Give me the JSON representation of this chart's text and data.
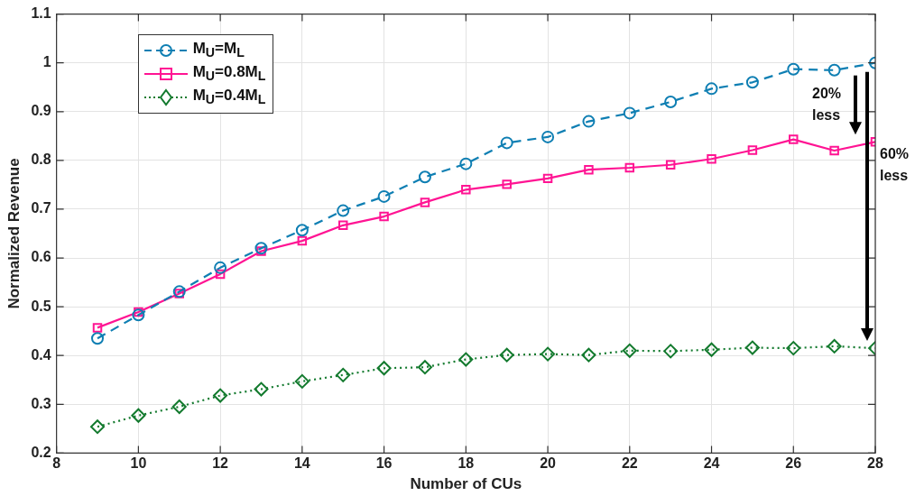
{
  "chart_data": {
    "type": "line",
    "xlabel": "Number of CUs",
    "ylabel": "Normalized Revenue",
    "x": [
      9,
      10,
      11,
      12,
      13,
      14,
      15,
      16,
      17,
      18,
      19,
      20,
      21,
      22,
      23,
      24,
      25,
      26,
      27,
      28
    ],
    "series": [
      {
        "name": "M$_{U}$=M$_{L}$",
        "color": "#0f7fb3",
        "marker": "circle",
        "line_style": "dashed",
        "values": [
          0.435,
          0.483,
          0.531,
          0.58,
          0.62,
          0.657,
          0.697,
          0.726,
          0.766,
          0.793,
          0.836,
          0.848,
          0.88,
          0.897,
          0.92,
          0.947,
          0.96,
          0.987,
          0.985,
          1.0
        ]
      },
      {
        "name": "M$_{U}$=0.8M$_{L}$",
        "color": "#ff1493",
        "marker": "square",
        "line_style": "solid",
        "values": [
          0.457,
          0.489,
          0.527,
          0.567,
          0.614,
          0.635,
          0.667,
          0.685,
          0.714,
          0.74,
          0.751,
          0.763,
          0.781,
          0.785,
          0.791,
          0.803,
          0.821,
          0.843,
          0.82,
          0.838
        ]
      },
      {
        "name": "M$_{U}$=0.4M$_{L}$",
        "color": "#137a2e",
        "marker": "diamond",
        "line_style": "dotted",
        "values": [
          0.254,
          0.277,
          0.295,
          0.318,
          0.331,
          0.347,
          0.36,
          0.374,
          0.376,
          0.392,
          0.401,
          0.403,
          0.401,
          0.41,
          0.409,
          0.412,
          0.416,
          0.415,
          0.419,
          0.415
        ]
      }
    ],
    "xlim": [
      8,
      28
    ],
    "xticks": [
      8,
      10,
      12,
      14,
      16,
      18,
      20,
      22,
      24,
      26,
      28
    ],
    "ylim": [
      0.2,
      1.1
    ],
    "yticks": [
      0.2,
      0.3,
      0.4,
      0.5,
      0.6,
      0.7,
      0.8,
      0.9,
      1,
      1.1
    ],
    "grid": true,
    "legend": "top left",
    "annotations": [
      "20%\nless",
      "60%\nless"
    ]
  }
}
